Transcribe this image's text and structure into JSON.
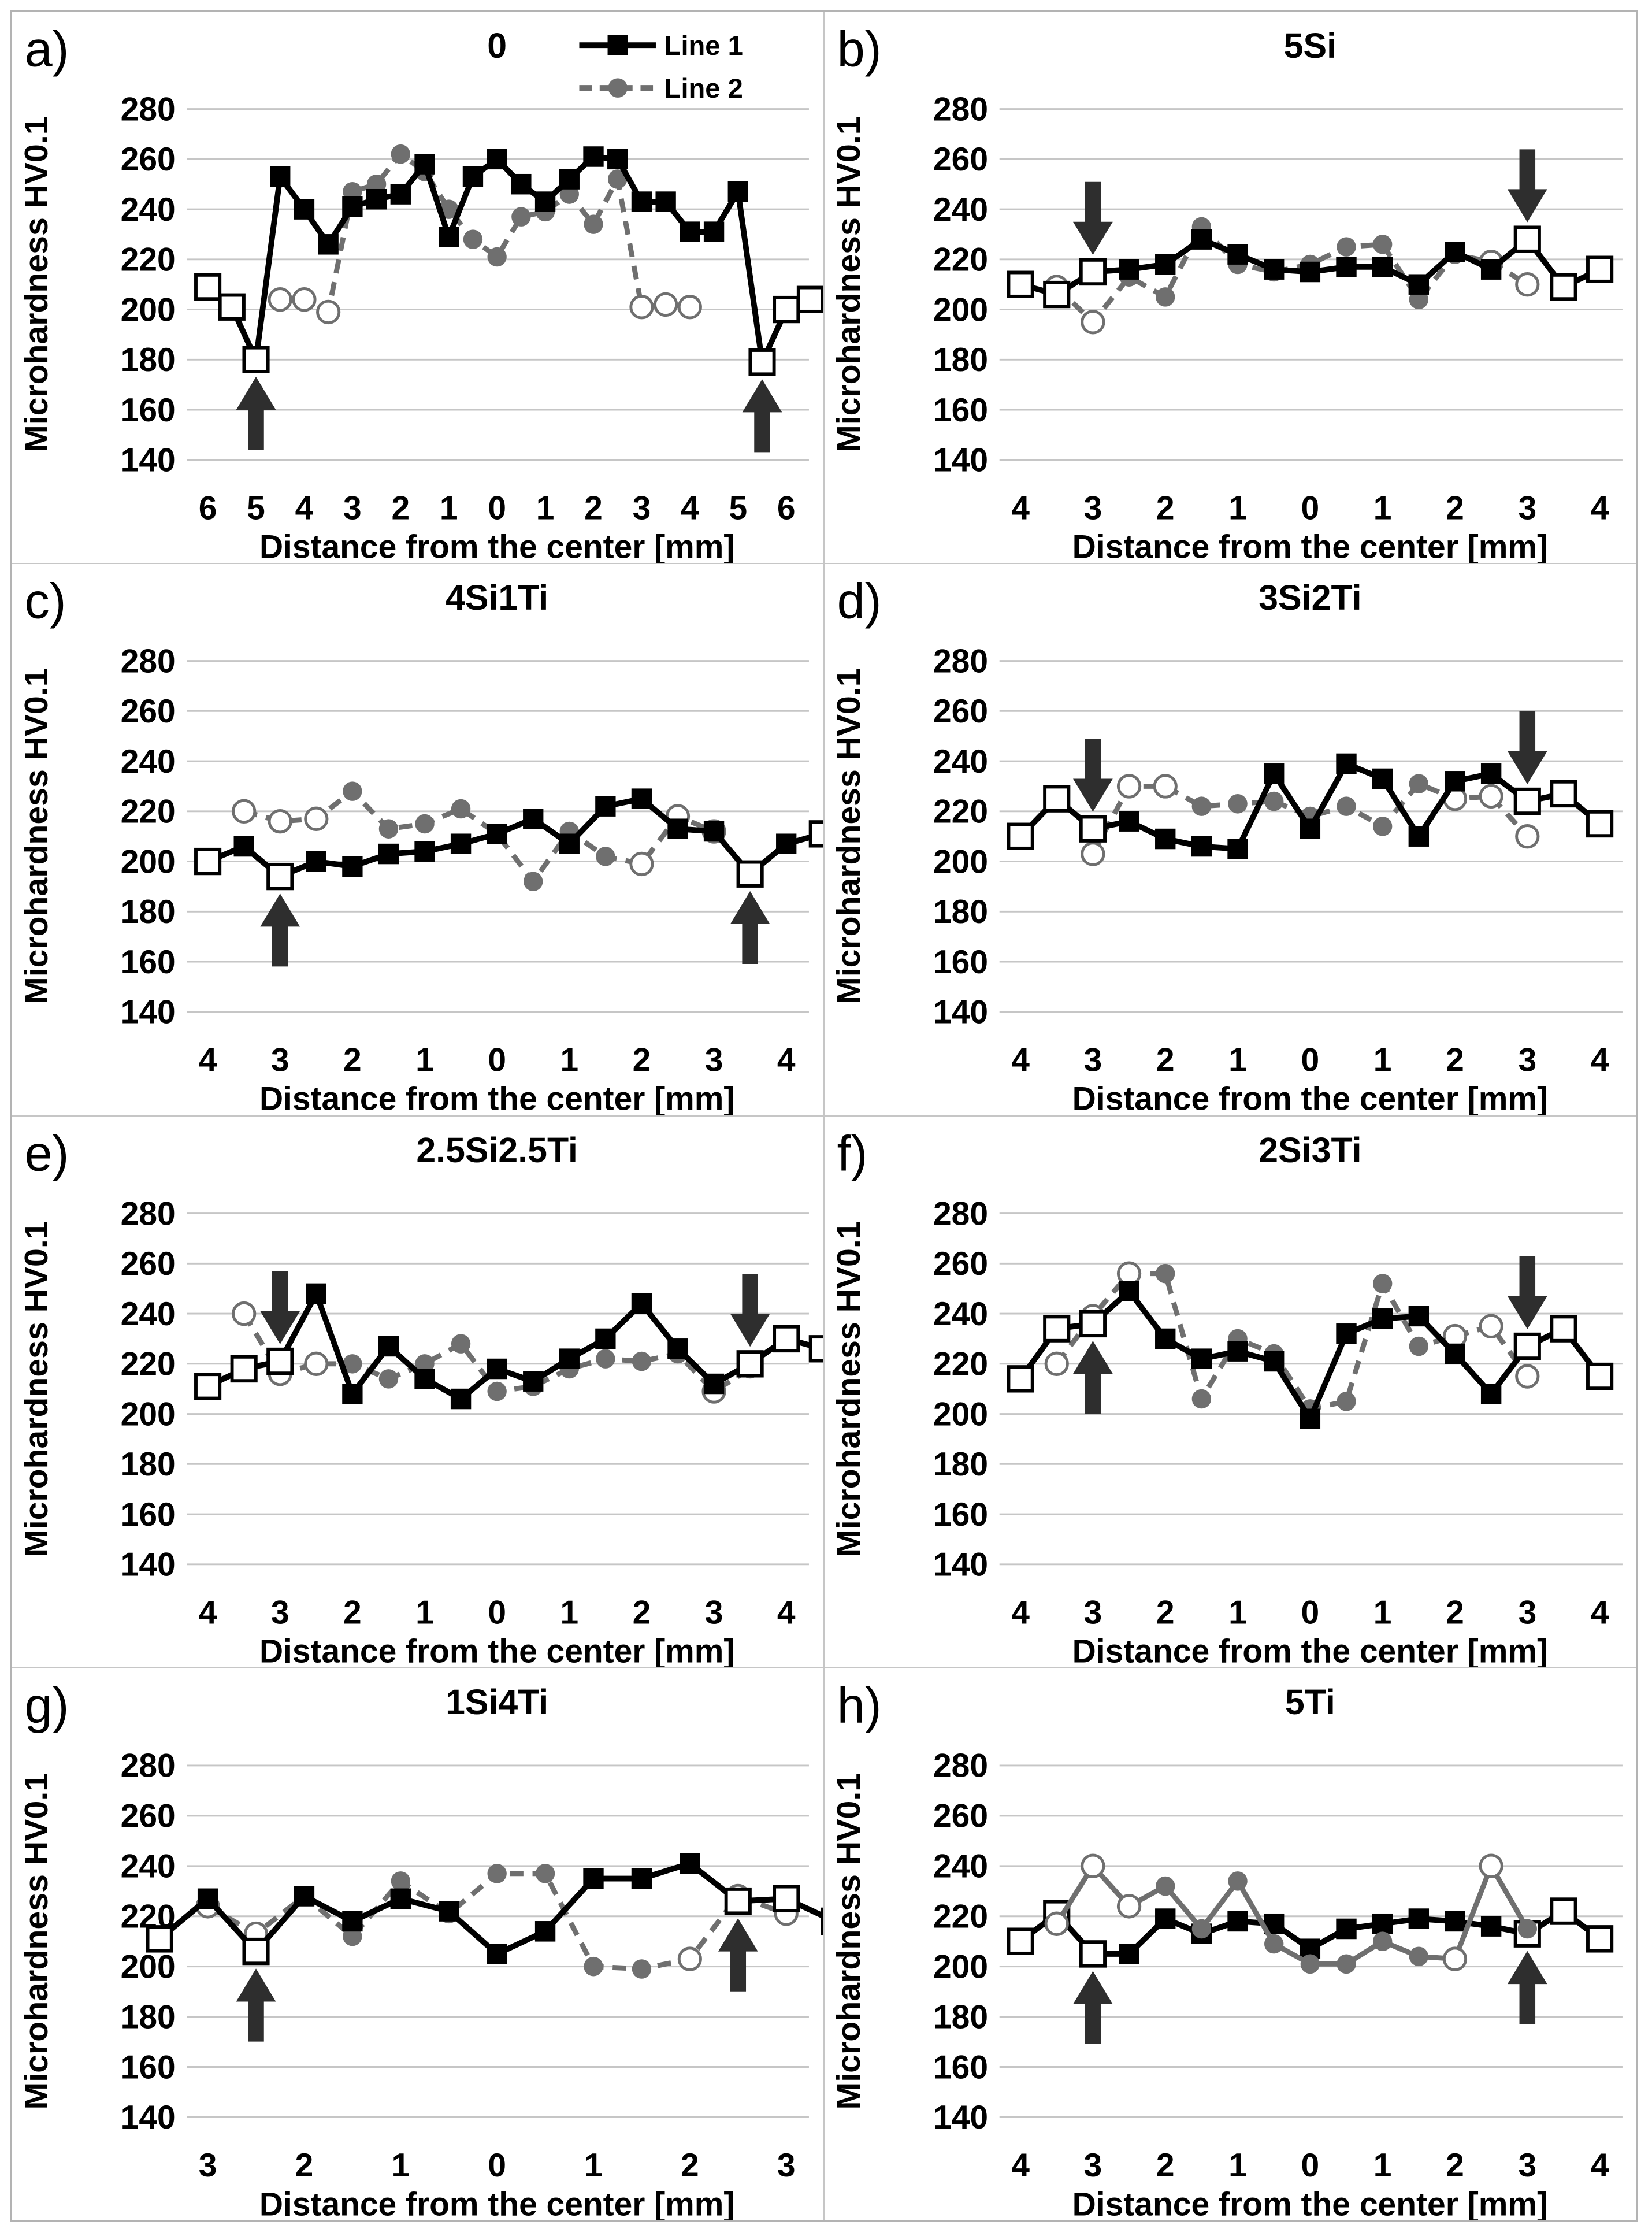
{
  "figure": {
    "ylabel": "Microhardness HV0.1",
    "xlabel": "Distance from the center [mm]",
    "y_ticks": [
      280,
      260,
      240,
      220,
      200,
      180,
      160,
      140
    ],
    "ylim": [
      140,
      280
    ],
    "grid": true,
    "legend": {
      "position": "top-right of panel a",
      "entries": [
        "Line 1",
        "Line 2"
      ]
    },
    "colors": {
      "line1": "#000000",
      "line2": "#6f6f6f",
      "gridline": "#c6c6c6",
      "arrow": "#2e2e2e",
      "border": "#b3b3b3"
    }
  },
  "chart_data": [
    {
      "type": "line",
      "letter": "a)",
      "title": "0",
      "x_range": 6,
      "x_tick_labels": [
        "6",
        "5",
        "4",
        "3",
        "2",
        "1",
        "0",
        "1",
        "2",
        "3",
        "4",
        "5",
        "6"
      ],
      "xlabel": "Distance from the center [mm]",
      "ylabel": "Microhardness HV0.1",
      "show_legend": true,
      "gray_on_top": false,
      "series": [
        {
          "name": "Line 1",
          "marker": "square",
          "style": "solid",
          "x_start": -6,
          "x_step": 0.5,
          "values": [
            209,
            201,
            180,
            253,
            240,
            226,
            241,
            244,
            246,
            258,
            229,
            253,
            260,
            250,
            243,
            252,
            261,
            260,
            243,
            243,
            231,
            231,
            247,
            179,
            200,
            204
          ],
          "open": [
            0,
            1,
            2,
            23,
            24,
            25
          ],
          "arrows": [
            {
              "index": 2,
              "dir": "up"
            },
            {
              "index": 23,
              "dir": "up"
            }
          ]
        },
        {
          "name": "Line 2",
          "marker": "circle",
          "style": "dashed",
          "x_start": -4.5,
          "x_step": 0.5,
          "values": [
            204,
            204,
            199,
            247,
            250,
            262,
            255,
            240,
            228,
            221,
            237,
            239,
            246,
            234,
            252,
            201,
            202,
            201
          ],
          "open": [
            0,
            1,
            2,
            15,
            16,
            17
          ],
          "arrows": []
        }
      ]
    },
    {
      "type": "line",
      "letter": "b)",
      "title": "5Si",
      "x_range": 4,
      "x_tick_labels": [
        "4",
        "3",
        "2",
        "1",
        "0",
        "1",
        "2",
        "3",
        "4"
      ],
      "xlabel": "Distance from the center [mm]",
      "ylabel": "Microhardness HV0.1",
      "show_legend": false,
      "gray_on_top": false,
      "series": [
        {
          "name": "Line 1",
          "marker": "square",
          "style": "solid",
          "x_start": -4,
          "x_step": 0.5,
          "values": [
            210,
            206,
            215,
            216,
            218,
            228,
            222,
            216,
            215,
            217,
            217,
            210,
            223,
            216,
            228,
            209,
            216
          ],
          "open": [
            0,
            1,
            2,
            14,
            15,
            16
          ],
          "arrows": [
            {
              "index": 2,
              "dir": "down"
            },
            {
              "index": 14,
              "dir": "down"
            }
          ]
        },
        {
          "name": "Line 2",
          "marker": "circle",
          "style": "dashed",
          "x_start": -3.5,
          "x_step": 0.5,
          "values": [
            209,
            195,
            213,
            205,
            233,
            218,
            215,
            218,
            225,
            226,
            204,
            222,
            219,
            210
          ],
          "open": [
            0,
            1,
            12,
            13
          ],
          "arrows": []
        }
      ]
    },
    {
      "type": "line",
      "letter": "c)",
      "title": "4Si1Ti",
      "x_range": 4,
      "x_tick_labels": [
        "4",
        "3",
        "2",
        "1",
        "0",
        "1",
        "2",
        "3",
        "4"
      ],
      "xlabel": "Distance from the center [mm]",
      "ylabel": "Microhardness HV0.1",
      "show_legend": false,
      "gray_on_top": false,
      "series": [
        {
          "name": "Line 1",
          "marker": "square",
          "style": "solid",
          "x_start": -4,
          "x_step": 0.5,
          "values": [
            200,
            206,
            194,
            200,
            198,
            203,
            204,
            207,
            211,
            217,
            207,
            222,
            225,
            213,
            212,
            195,
            207,
            211
          ],
          "open": [
            0,
            2,
            15,
            17
          ],
          "arrows": [
            {
              "index": 2,
              "dir": "up"
            },
            {
              "index": 15,
              "dir": "up"
            }
          ]
        },
        {
          "name": "Line 2",
          "marker": "circle",
          "style": "dashed",
          "x_start": -3.5,
          "x_step": 0.5,
          "values": [
            220,
            216,
            217,
            228,
            213,
            215,
            221,
            211,
            192,
            212,
            202,
            199,
            218,
            212
          ],
          "open": [
            0,
            1,
            2,
            11,
            12,
            13
          ],
          "arrows": []
        }
      ]
    },
    {
      "type": "line",
      "letter": "d)",
      "title": "3Si2Ti",
      "x_range": 4,
      "x_tick_labels": [
        "4",
        "3",
        "2",
        "1",
        "0",
        "1",
        "2",
        "3",
        "4"
      ],
      "xlabel": "Distance from the center [mm]",
      "ylabel": "Microhardness HV0.1",
      "show_legend": false,
      "gray_on_top": false,
      "series": [
        {
          "name": "Line 1",
          "marker": "square",
          "style": "solid",
          "x_start": -4,
          "x_step": 0.5,
          "values": [
            210,
            225,
            213,
            216,
            209,
            206,
            205,
            235,
            213,
            239,
            233,
            210,
            232,
            235,
            224,
            227,
            215
          ],
          "open": [
            0,
            1,
            2,
            14,
            15,
            16
          ],
          "arrows": [
            {
              "index": 2,
              "dir": "down"
            },
            {
              "index": 14,
              "dir": "down"
            }
          ]
        },
        {
          "name": "Line 2",
          "marker": "circle",
          "style": "dashed",
          "x_start": -3,
          "x_step": 0.5,
          "values": [
            203,
            230,
            230,
            222,
            223,
            224,
            218,
            222,
            214,
            231,
            225,
            226,
            210
          ],
          "open": [
            0,
            1,
            2,
            10,
            11,
            12
          ],
          "arrows": []
        }
      ]
    },
    {
      "type": "line",
      "letter": "e)",
      "title": "2.5Si2.5Ti",
      "x_range": 4,
      "x_tick_labels": [
        "4",
        "3",
        "2",
        "1",
        "0",
        "1",
        "2",
        "3",
        "4"
      ],
      "xlabel": "Distance from the center [mm]",
      "ylabel": "Microhardness HV0.1",
      "show_legend": false,
      "gray_on_top": false,
      "series": [
        {
          "name": "Line 1",
          "marker": "square",
          "style": "solid",
          "x_start": -4,
          "x_step": 0.5,
          "values": [
            211,
            218,
            221,
            248,
            208,
            227,
            214,
            206,
            218,
            213,
            222,
            230,
            244,
            226,
            212,
            220,
            230,
            226
          ],
          "open": [
            0,
            1,
            2,
            15,
            16,
            17
          ],
          "arrows": [
            {
              "index": 2,
              "dir": "down"
            },
            {
              "index": 15,
              "dir": "down"
            }
          ]
        },
        {
          "name": "Line 2",
          "marker": "circle",
          "style": "dashed",
          "x_start": -3.5,
          "x_step": 0.5,
          "values": [
            240,
            216,
            220,
            220,
            214,
            220,
            228,
            209,
            211,
            218,
            222,
            221,
            224,
            209,
            218
          ],
          "open": [
            0,
            1,
            2,
            13
          ],
          "arrows": []
        }
      ]
    },
    {
      "type": "line",
      "letter": "f)",
      "title": "2Si3Ti",
      "x_range": 4,
      "x_tick_labels": [
        "4",
        "3",
        "2",
        "1",
        "0",
        "1",
        "2",
        "3",
        "4"
      ],
      "xlabel": "Distance from the center [mm]",
      "ylabel": "Microhardness HV0.1",
      "show_legend": false,
      "gray_on_top": false,
      "series": [
        {
          "name": "Line 1",
          "marker": "square",
          "style": "solid",
          "x_start": -4,
          "x_step": 0.5,
          "values": [
            214,
            234,
            236,
            249,
            230,
            222,
            225,
            221,
            198,
            232,
            238,
            239,
            224,
            208,
            227,
            234,
            215
          ],
          "open": [
            0,
            1,
            2,
            14,
            15,
            16
          ],
          "arrows": [
            {
              "index": 2,
              "dir": "up"
            },
            {
              "index": 14,
              "dir": "down"
            }
          ]
        },
        {
          "name": "Line 2",
          "marker": "circle",
          "style": "dashed",
          "x_start": -3.5,
          "x_step": 0.5,
          "values": [
            220,
            239,
            256,
            256,
            206,
            230,
            224,
            202,
            205,
            252,
            227,
            231,
            235,
            215
          ],
          "open": [
            0,
            1,
            2,
            11,
            12,
            13
          ],
          "arrows": []
        }
      ]
    },
    {
      "type": "line",
      "letter": "g)",
      "title": "1Si4Ti",
      "x_range": 3,
      "x_tick_labels": [
        "3",
        "2",
        "1",
        "0",
        "1",
        "2",
        "3"
      ],
      "xlabel": "Distance from the center [mm]",
      "ylabel": "Microhardness HV0.1",
      "show_legend": false,
      "gray_on_top": false,
      "series": [
        {
          "name": "Line 1",
          "marker": "square",
          "style": "solid",
          "x_start": -3.5,
          "x_step": 0.5,
          "values": [
            211,
            227,
            206,
            228,
            218,
            227,
            222,
            205,
            214,
            235,
            235,
            241,
            226,
            227,
            218
          ],
          "open": [
            0,
            2,
            12,
            13,
            14
          ],
          "arrows": [
            {
              "index": 2,
              "dir": "up"
            },
            {
              "index": 12,
              "dir": "up"
            }
          ]
        },
        {
          "name": "Line 2",
          "marker": "circle",
          "style": "dashed",
          "x_start": -3,
          "x_step": 0.5,
          "values": [
            224,
            213,
            228,
            212,
            234,
            221,
            237,
            237,
            200,
            199,
            203,
            228,
            221
          ],
          "open": [
            0,
            1,
            10,
            11,
            12
          ],
          "arrows": []
        }
      ]
    },
    {
      "type": "line",
      "letter": "h)",
      "title": "5Ti",
      "x_range": 4,
      "x_tick_labels": [
        "4",
        "3",
        "2",
        "1",
        "0",
        "1",
        "2",
        "3",
        "4"
      ],
      "xlabel": "Distance from the center [mm]",
      "ylabel": "Microhardness HV0.1",
      "show_legend": false,
      "gray_on_top": true,
      "series": [
        {
          "name": "Line 1",
          "marker": "square",
          "style": "solid",
          "x_start": -4,
          "x_step": 0.5,
          "values": [
            210,
            221,
            205,
            205,
            219,
            213,
            218,
            217,
            207,
            215,
            217,
            219,
            218,
            216,
            213,
            222,
            211
          ],
          "open": [
            0,
            1,
            2,
            14,
            15,
            16
          ],
          "arrows": [
            {
              "index": 2,
              "dir": "up"
            },
            {
              "index": 14,
              "dir": "up"
            }
          ]
        },
        {
          "name": "Line 2",
          "marker": "circle",
          "style": "solid",
          "x_start": -3.5,
          "x_step": 0.5,
          "values": [
            217,
            240,
            224,
            232,
            215,
            234,
            209,
            201,
            201,
            210,
            204,
            203,
            240,
            215
          ],
          "open": [
            0,
            1,
            2,
            11,
            12
          ],
          "arrows": []
        }
      ]
    }
  ]
}
